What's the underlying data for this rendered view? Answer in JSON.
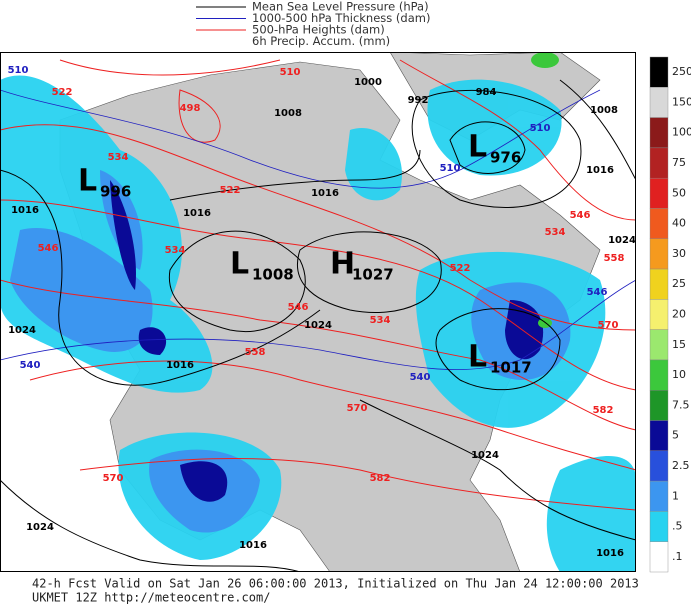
{
  "legend": [
    {
      "label": "Mean Sea Level Pressure (hPa)",
      "color": "#000000"
    },
    {
      "label": "1000-500 hPa Thickness (dam)",
      "color": "#2020c0"
    },
    {
      "label": "500-hPa Heights (dam)",
      "color": "#ee2020"
    },
    {
      "label": "6h Precip. Accum. (mm)"
    }
  ],
  "colorbar": [
    {
      "label": "250",
      "color": "#000000"
    },
    {
      "label": "150",
      "color": "#d8d8d8"
    },
    {
      "label": "100",
      "color": "#8b1a1a"
    },
    {
      "label": "75",
      "color": "#b22222"
    },
    {
      "label": "50",
      "color": "#e02020"
    },
    {
      "label": "40",
      "color": "#f05a1e"
    },
    {
      "label": "30",
      "color": "#f59a1e"
    },
    {
      "label": "25",
      "color": "#f0d21e"
    },
    {
      "label": "20",
      "color": "#f5f06e"
    },
    {
      "label": "15",
      "color": "#9be86e"
    },
    {
      "label": "10",
      "color": "#3cc83c"
    },
    {
      "label": "7.5",
      "color": "#1e9628"
    },
    {
      "label": "5",
      "color": "#0a0a96"
    },
    {
      "label": "2.5",
      "color": "#2850dc"
    },
    {
      "label": "1",
      "color": "#3c96f0"
    },
    {
      "label": ".5",
      "color": "#28d2f0"
    },
    {
      "label": ".1",
      "color": "#ffffff"
    }
  ],
  "pressure_centers": [
    {
      "type": "L",
      "value": "996"
    },
    {
      "type": "L",
      "value": "1008"
    },
    {
      "type": "H",
      "value": "1027"
    },
    {
      "type": "L",
      "value": "976"
    },
    {
      "type": "L",
      "value": "1017"
    }
  ],
  "height_labels": [
    "522",
    "534",
    "498",
    "522",
    "534",
    "546",
    "558",
    "570",
    "582",
    "534",
    "522",
    "534",
    "546",
    "558",
    "570",
    "582",
    "570",
    "510",
    "546"
  ],
  "pressure_labels": [
    "1016",
    "1024",
    "1016",
    "1024",
    "1000",
    "992",
    "984",
    "1008",
    "1016",
    "1016",
    "1008",
    "1016",
    "1024",
    "1024",
    "1016",
    "1024",
    "1016"
  ],
  "thickness_labels": [
    "510",
    "510",
    "510",
    "540",
    "540",
    "546"
  ],
  "footer": {
    "line1": "42-h Fcst Valid on Sat Jan 26 06:00:00 2013, Initialized on Thu Jan 24 12:00:00 2013",
    "line2": "UKMET 12Z http://meteocentre.com/"
  }
}
